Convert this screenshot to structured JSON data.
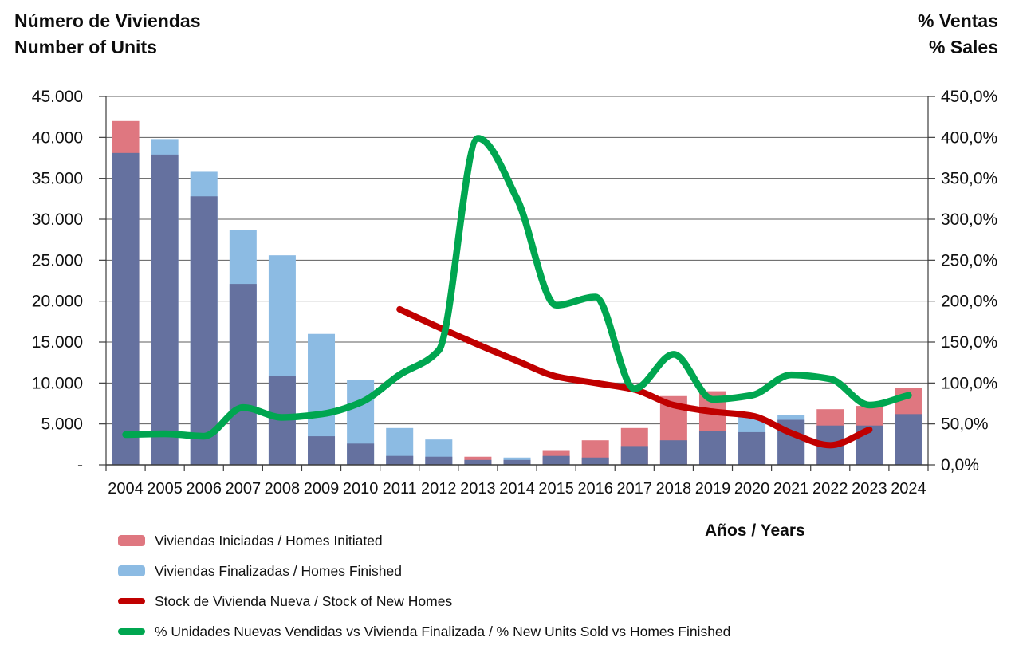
{
  "chart_data": {
    "type": "combo: overlapped bars (left axis) + smoothed lines (left and right axes)",
    "titles": {
      "left_line1": "Número de Viviendas",
      "left_line2": "Number of Units",
      "right_line1": "% Ventas",
      "right_line2": "% Sales",
      "x_axis": "Años / Years"
    },
    "categories": [
      "2004",
      "2005",
      "2006",
      "2007",
      "2008",
      "2009",
      "2010",
      "2011",
      "2012",
      "2013",
      "2014",
      "2015",
      "2016",
      "2017",
      "2018",
      "2019",
      "2020",
      "2021",
      "2022",
      "2023",
      "2024"
    ],
    "left_axis": {
      "min": 0,
      "max": 45000,
      "step": 5000,
      "tick_labels_top_down": [
        "45.000",
        "40.000",
        "35.000",
        "30.000",
        "25.000",
        "20.000",
        "15.000",
        "10.000",
        "5.000",
        "-"
      ]
    },
    "right_axis": {
      "min": 0,
      "max": 450,
      "step": 50,
      "tick_labels_top_down": [
        "450,0%",
        "400,0%",
        "350,0%",
        "300,0%",
        "250,0%",
        "200,0%",
        "150,0%",
        "100,0%",
        "50,0%",
        "0,0%"
      ]
    },
    "series": [
      {
        "name": "Viviendas Iniciadas / Homes Initiated",
        "type": "bar",
        "axis": "left",
        "color": "#DF7780",
        "values": [
          42000,
          37900,
          32800,
          22100,
          10900,
          3500,
          2600,
          1100,
          1000,
          1000,
          600,
          1800,
          3000,
          4500,
          8400,
          9000,
          4000,
          5500,
          6800,
          7200,
          9400
        ]
      },
      {
        "name": "Viviendas Finalizadas / Homes Finished",
        "type": "bar",
        "axis": "left",
        "color": "#8CBBE3",
        "values": [
          38100,
          39800,
          35800,
          28700,
          25600,
          16000,
          10400,
          4500,
          3100,
          600,
          900,
          1100,
          900,
          2300,
          3000,
          4100,
          5900,
          6100,
          4800,
          4800,
          6200
        ]
      },
      {
        "name": "Stock de Vivienda Nueva / Stock of New Homes",
        "type": "line",
        "axis": "left",
        "color": "#C00000",
        "values": [
          null,
          null,
          null,
          null,
          null,
          null,
          null,
          19000,
          16800,
          14700,
          12700,
          10800,
          10000,
          9200,
          7300,
          6500,
          6000,
          3900,
          2400,
          4300,
          null
        ]
      },
      {
        "name": "% Unidades Nuevas Vendidas vs Vivienda Finalizada / % New Units Sold vs Homes Finished",
        "type": "line",
        "axis": "right",
        "color": "#00A650",
        "values": [
          37,
          38,
          35,
          70,
          58,
          62,
          76,
          110,
          140,
          399,
          325,
          195,
          205,
          93,
          135,
          80,
          85,
          110,
          105,
          73,
          85
        ]
      }
    ],
    "bar_overlap_color": "#65719F",
    "grid_color": "#5e5e5e",
    "axis_color": "#3c3c3c",
    "grid_on": true,
    "legend_position": "bottom-left",
    "legend": [
      {
        "label": "Viviendas Iniciadas / Homes Initiated",
        "color": "#DF7780",
        "swatch": "bar"
      },
      {
        "label": "Viviendas Finalizadas / Homes Finished",
        "color": "#8CBBE3",
        "swatch": "bar"
      },
      {
        "label": "Stock de Vivienda Nueva / Stock of New Homes",
        "color": "#C00000",
        "swatch": "line"
      },
      {
        "label": "% Unidades Nuevas Vendidas vs Vivienda Finalizada / % New Units Sold vs Homes Finished",
        "color": "#00A650",
        "swatch": "line"
      }
    ]
  }
}
